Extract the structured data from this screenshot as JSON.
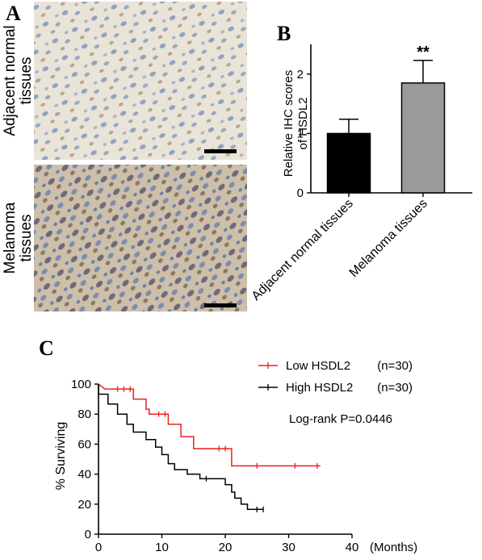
{
  "panel_a": {
    "letter": "A",
    "top_label_line1": "Adjacent normal",
    "top_label_line2": "tissues",
    "bottom_label_line1": "Melanoma",
    "bottom_label_line2": "tissues"
  },
  "panel_b": {
    "letter": "B"
  },
  "panel_c": {
    "letter": "C"
  },
  "chart_data": [
    {
      "type": "bar",
      "ylabel_line1": "Relative IHC scores",
      "ylabel_line2": "of HSDL2",
      "categories": [
        "Adjacent normal tissues",
        "Melanoma  tissues"
      ],
      "values": [
        1.0,
        1.85
      ],
      "errors": [
        0.24,
        0.38
      ],
      "colors": [
        "#000000",
        "#9a9a9a"
      ],
      "ylim": [
        0,
        2.5
      ],
      "yticks": [
        "0",
        "1",
        "2"
      ],
      "significance": "**"
    },
    {
      "type": "line",
      "ylabel": "% Surviving",
      "xlabel": "(Months)",
      "xlim": [
        0,
        40
      ],
      "ylim": [
        0,
        100
      ],
      "xticks": [
        "0",
        "10",
        "20",
        "30",
        "40"
      ],
      "yticks": [
        "0",
        "20",
        "40",
        "60",
        "80",
        "100"
      ],
      "annotation": "Log-rank P=0.0446",
      "series": [
        {
          "name": "Low HSDL2",
          "n_label": "(n=30)",
          "color": "#e8231f",
          "steps": [
            [
              0,
              100
            ],
            [
              1,
              96.7
            ],
            [
              5.5,
              96.7
            ],
            [
              5.5,
              90
            ],
            [
              7.5,
              90
            ],
            [
              7.5,
              83.3
            ],
            [
              8,
              83.3
            ],
            [
              8,
              80
            ],
            [
              11,
              80
            ],
            [
              11,
              73.3
            ],
            [
              13,
              73.3
            ],
            [
              13,
              65
            ],
            [
              15,
              65
            ],
            [
              15,
              57
            ],
            [
              21,
              57
            ],
            [
              21,
              45.5
            ],
            [
              35,
              45.5
            ]
          ],
          "censor": [
            [
              3,
              96.7
            ],
            [
              4,
              96.7
            ],
            [
              5,
              96.7
            ],
            [
              9.5,
              80
            ],
            [
              10.5,
              80
            ],
            [
              19,
              57
            ],
            [
              20,
              57
            ],
            [
              25,
              45.5
            ],
            [
              31,
              45.5
            ],
            [
              34.5,
              45.5
            ]
          ]
        },
        {
          "name": "High HSDL2",
          "n_label": "(n=30)",
          "color": "#000000",
          "steps": [
            [
              0,
              100
            ],
            [
              0,
              93.3
            ],
            [
              1.5,
              93.3
            ],
            [
              1.5,
              86.7
            ],
            [
              3,
              86.7
            ],
            [
              3,
              80
            ],
            [
              4.5,
              80
            ],
            [
              4.5,
              73.3
            ],
            [
              5.5,
              73.3
            ],
            [
              5.5,
              68
            ],
            [
              7.5,
              68
            ],
            [
              7.5,
              63
            ],
            [
              9,
              63
            ],
            [
              9,
              58
            ],
            [
              10,
              58
            ],
            [
              10,
              53
            ],
            [
              11,
              53
            ],
            [
              11,
              47
            ],
            [
              12,
              47
            ],
            [
              12,
              43
            ],
            [
              14,
              43
            ],
            [
              14,
              40
            ],
            [
              16,
              40
            ],
            [
              16,
              37
            ],
            [
              20,
              37
            ],
            [
              20,
              33
            ],
            [
              21,
              33
            ],
            [
              21,
              28
            ],
            [
              21.5,
              28
            ],
            [
              21.5,
              24
            ],
            [
              22.5,
              24
            ],
            [
              22.5,
              20
            ],
            [
              23.5,
              20
            ],
            [
              23.5,
              16.5
            ],
            [
              26,
              16.5
            ]
          ],
          "censor": [
            [
              17,
              37
            ],
            [
              25,
              16.5
            ],
            [
              26,
              16.5
            ]
          ]
        }
      ]
    }
  ]
}
